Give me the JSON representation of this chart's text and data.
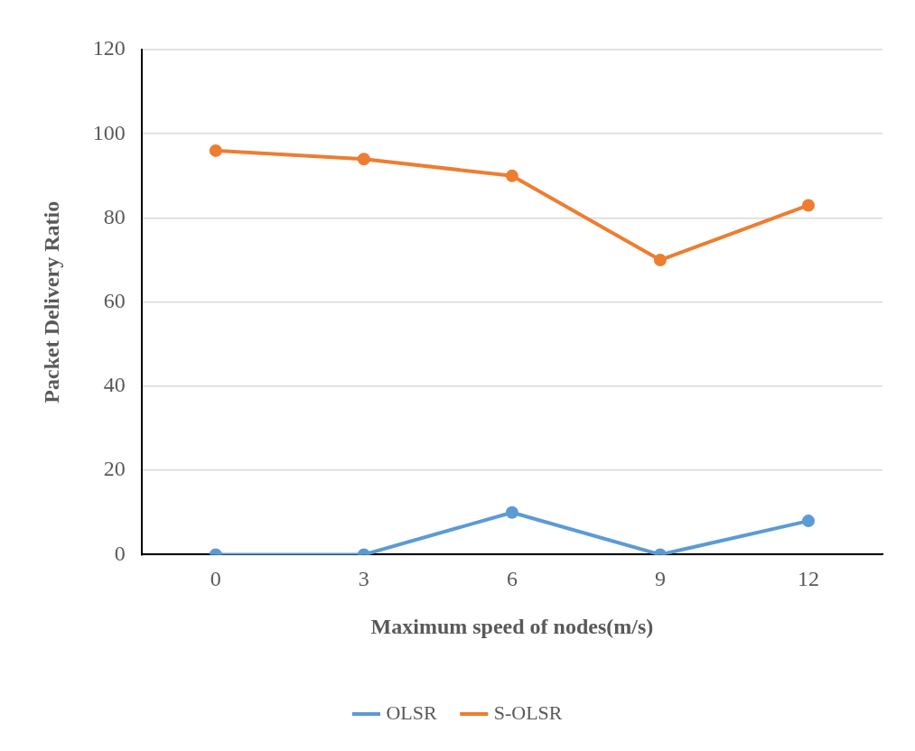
{
  "chart_data": {
    "type": "line",
    "xlabel": "Maximum speed of nodes(m/s)",
    "ylabel": "Packet Delivery Ratio",
    "categories": [
      "0",
      "3",
      "6",
      "9",
      "12"
    ],
    "series": [
      {
        "name": "OLSR",
        "color": "#5b9bd5",
        "values": [
          0,
          0,
          10,
          0,
          8
        ]
      },
      {
        "name": "S-OLSR",
        "color": "#ed7d31",
        "values": [
          96,
          94,
          90,
          70,
          83
        ]
      }
    ],
    "ylim": [
      0,
      120
    ],
    "yticks": [
      0,
      20,
      40,
      60,
      80,
      100,
      120
    ],
    "grid": "y",
    "legend": "bottom",
    "marker": "circle",
    "line_style": "solid"
  }
}
